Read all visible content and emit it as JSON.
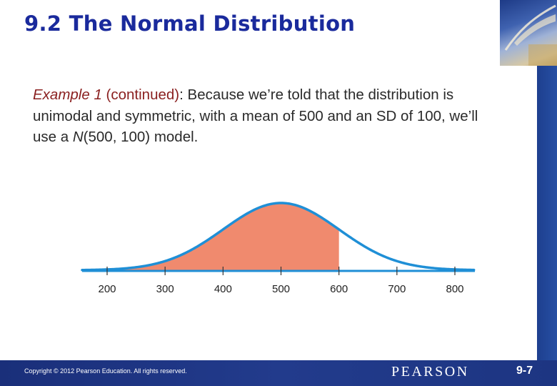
{
  "slide": {
    "title": "9.2 The Normal Distribution",
    "body": {
      "example_label": "Example 1",
      "continued": " (continued)",
      "text_part1": ": Because we’re told that the distribution is unimodal and symmetric, with a mean of 500 and an SD of 100, we’ll use a ",
      "model_letter": "N",
      "model_params": "(500, 100)",
      "text_part2": " model."
    }
  },
  "chart_data": {
    "type": "area",
    "distribution": "normal",
    "mean": 500,
    "sd": 100,
    "x_ticks": [
      200,
      300,
      400,
      500,
      600,
      700,
      800
    ],
    "x_tick_labels": [
      "200",
      "300",
      "400",
      "500",
      "600",
      "700",
      "800"
    ],
    "xlim": [
      170,
      830
    ],
    "shaded_region": {
      "from": 170,
      "to": 600
    },
    "colors": {
      "curve": "#1f8fd6",
      "shade": "#f08a6e",
      "axis": "#1f8fd6"
    },
    "grid": false
  },
  "footer": {
    "copyright": "Copyright © 2012 Pearson Education. All rights reserved.",
    "brand": "PEARSON",
    "slide_number": "9-7"
  }
}
